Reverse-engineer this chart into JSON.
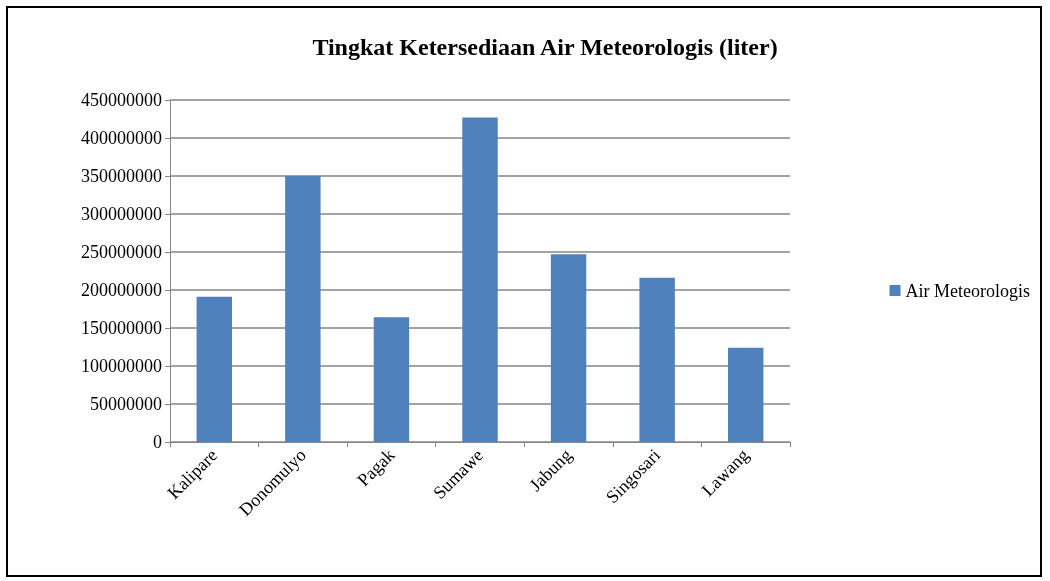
{
  "chart_data": {
    "type": "bar",
    "title": "Tingkat Ketersediaan Air Meteorologis (liter)",
    "categories": [
      "Kalipare",
      "Donomulyo",
      "Pagak",
      "Sumawe",
      "Jabung",
      "Singosari",
      "Lawang"
    ],
    "series": [
      {
        "name": "Air Meteorologis",
        "color": "#4f81bd",
        "values": [
          191000000,
          350000000,
          164000000,
          427000000,
          247000000,
          216000000,
          124000000
        ]
      }
    ],
    "ylim": [
      0,
      450000000
    ],
    "yticks": [
      0,
      50000000,
      100000000,
      150000000,
      200000000,
      250000000,
      300000000,
      350000000,
      400000000,
      450000000
    ],
    "grid": "y",
    "legend": "right"
  }
}
